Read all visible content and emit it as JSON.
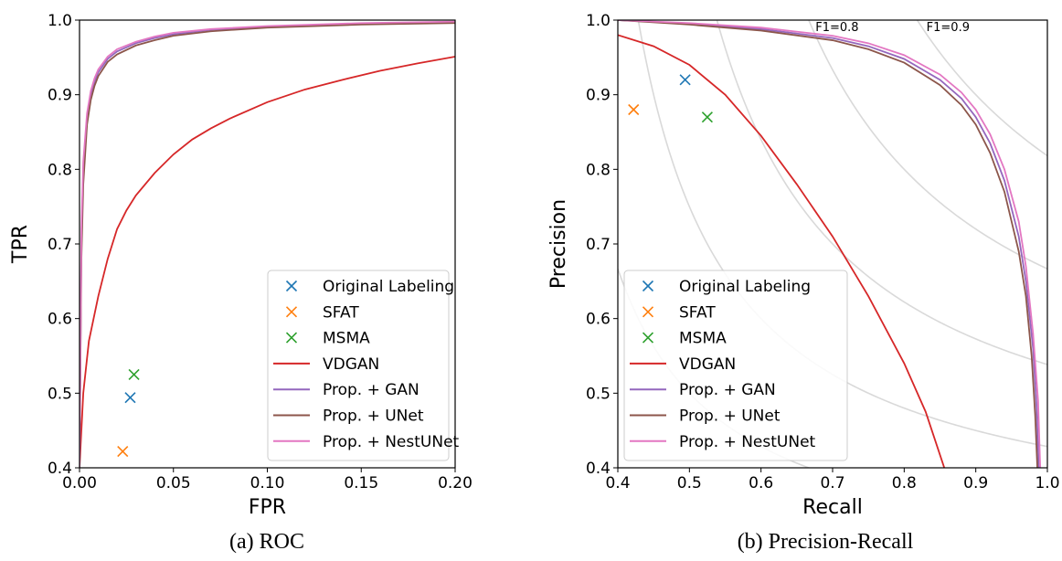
{
  "colors": {
    "blue": "#1f77b4",
    "orange": "#ff7f0e",
    "green": "#2ca02c",
    "red": "#d62728",
    "purple": "#9467bd",
    "brown": "#8c564b",
    "pink": "#e377c2",
    "iso": "#d9d9d9"
  },
  "chart_data": [
    {
      "type": "line",
      "caption": "(a) ROC",
      "title": "",
      "xlabel": "FPR",
      "ylabel": "TPR",
      "xlim": [
        0.0,
        0.2
      ],
      "ylim": [
        0.4,
        1.0
      ],
      "xticks": [
        "0.00",
        "0.05",
        "0.10",
        "0.15",
        "0.20"
      ],
      "yticks": [
        "0.4",
        "0.5",
        "0.6",
        "0.7",
        "0.8",
        "0.9",
        "1.0"
      ],
      "grid": false,
      "legend_position": "lower-right",
      "markers": [
        {
          "name": "Original Labeling",
          "x": 0.027,
          "y": 0.494,
          "color": "#1f77b4"
        },
        {
          "name": "SFAT",
          "x": 0.023,
          "y": 0.422,
          "color": "#ff7f0e"
        },
        {
          "name": "MSMA",
          "x": 0.029,
          "y": 0.525,
          "color": "#2ca02c"
        }
      ],
      "series": [
        {
          "name": "VDGAN",
          "color": "#d62728",
          "x": [
            0.0,
            0.002,
            0.005,
            0.01,
            0.015,
            0.02,
            0.025,
            0.03,
            0.04,
            0.05,
            0.06,
            0.07,
            0.08,
            0.1,
            0.12,
            0.14,
            0.16,
            0.18,
            0.2
          ],
          "y": [
            0.4,
            0.5,
            0.57,
            0.63,
            0.68,
            0.72,
            0.745,
            0.765,
            0.795,
            0.82,
            0.84,
            0.855,
            0.868,
            0.89,
            0.907,
            0.92,
            0.932,
            0.942,
            0.951
          ]
        },
        {
          "name": "Prop. + GAN",
          "color": "#9467bd",
          "x": [
            0.0,
            0.001,
            0.002,
            0.004,
            0.006,
            0.008,
            0.01,
            0.015,
            0.02,
            0.03,
            0.04,
            0.05,
            0.07,
            0.1,
            0.15,
            0.2
          ],
          "y": [
            0.4,
            0.7,
            0.8,
            0.87,
            0.9,
            0.918,
            0.93,
            0.948,
            0.958,
            0.969,
            0.976,
            0.981,
            0.987,
            0.991,
            0.995,
            0.997
          ]
        },
        {
          "name": "Prop. + UNet",
          "color": "#8c564b",
          "x": [
            0.0,
            0.001,
            0.002,
            0.004,
            0.006,
            0.008,
            0.01,
            0.015,
            0.02,
            0.03,
            0.04,
            0.05,
            0.07,
            0.1,
            0.15,
            0.2
          ],
          "y": [
            0.4,
            0.68,
            0.78,
            0.86,
            0.893,
            0.912,
            0.925,
            0.944,
            0.954,
            0.966,
            0.973,
            0.979,
            0.985,
            0.99,
            0.994,
            0.996
          ]
        },
        {
          "name": "Prop. + NestUNet",
          "color": "#e377c2",
          "x": [
            0.0,
            0.001,
            0.002,
            0.004,
            0.006,
            0.008,
            0.01,
            0.015,
            0.02,
            0.03,
            0.04,
            0.05,
            0.07,
            0.1,
            0.15,
            0.2
          ],
          "y": [
            0.4,
            0.72,
            0.81,
            0.875,
            0.905,
            0.922,
            0.934,
            0.951,
            0.961,
            0.971,
            0.978,
            0.983,
            0.988,
            0.992,
            0.996,
            0.998
          ]
        }
      ]
    },
    {
      "type": "line",
      "caption": "(b) Precision-Recall",
      "title": "",
      "xlabel": "Recall",
      "ylabel": "Precision",
      "xlim": [
        0.4,
        1.0
      ],
      "ylim": [
        0.4,
        1.0
      ],
      "xticks": [
        "0.4",
        "0.5",
        "0.6",
        "0.7",
        "0.8",
        "0.9",
        "1.0"
      ],
      "yticks": [
        "0.4",
        "0.5",
        "0.6",
        "0.7",
        "0.8",
        "0.9",
        "1.0"
      ],
      "grid": false,
      "legend_position": "lower-left",
      "iso_f1": [
        {
          "f1": 0.5
        },
        {
          "f1": 0.6
        },
        {
          "f1": 0.7
        },
        {
          "f1": 0.8,
          "label": "F1=0.8"
        },
        {
          "f1": 0.9,
          "label": "F1=0.9"
        }
      ],
      "markers": [
        {
          "name": "Original Labeling",
          "x": 0.494,
          "y": 0.92,
          "color": "#1f77b4"
        },
        {
          "name": "SFAT",
          "x": 0.422,
          "y": 0.88,
          "color": "#ff7f0e"
        },
        {
          "name": "MSMA",
          "x": 0.525,
          "y": 0.87,
          "color": "#2ca02c"
        }
      ],
      "series": [
        {
          "name": "VDGAN",
          "color": "#d62728",
          "x": [
            0.4,
            0.45,
            0.5,
            0.55,
            0.6,
            0.65,
            0.7,
            0.75,
            0.8,
            0.83,
            0.856
          ],
          "y": [
            0.98,
            0.965,
            0.94,
            0.9,
            0.845,
            0.78,
            0.71,
            0.63,
            0.54,
            0.475,
            0.4
          ]
        },
        {
          "name": "Prop. + GAN",
          "color": "#9467bd",
          "x": [
            0.4,
            0.5,
            0.6,
            0.7,
            0.75,
            0.8,
            0.85,
            0.88,
            0.9,
            0.92,
            0.94,
            0.96,
            0.97,
            0.98,
            0.985,
            0.988
          ],
          "y": [
            1.0,
            0.995,
            0.988,
            0.976,
            0.965,
            0.948,
            0.92,
            0.895,
            0.87,
            0.835,
            0.785,
            0.71,
            0.65,
            0.56,
            0.48,
            0.4
          ]
        },
        {
          "name": "Prop. + UNet",
          "color": "#8c564b",
          "x": [
            0.4,
            0.5,
            0.6,
            0.7,
            0.75,
            0.8,
            0.85,
            0.88,
            0.9,
            0.92,
            0.94,
            0.96,
            0.97,
            0.978,
            0.983,
            0.986
          ],
          "y": [
            1.0,
            0.994,
            0.986,
            0.973,
            0.961,
            0.943,
            0.913,
            0.886,
            0.86,
            0.822,
            0.77,
            0.69,
            0.63,
            0.55,
            0.47,
            0.4
          ]
        },
        {
          "name": "Prop. + NestUNet",
          "color": "#e377c2",
          "x": [
            0.4,
            0.5,
            0.6,
            0.7,
            0.75,
            0.8,
            0.85,
            0.88,
            0.9,
            0.92,
            0.94,
            0.96,
            0.97,
            0.98,
            0.987,
            0.99
          ],
          "y": [
            1.0,
            0.996,
            0.99,
            0.979,
            0.969,
            0.953,
            0.927,
            0.903,
            0.88,
            0.847,
            0.8,
            0.73,
            0.67,
            0.58,
            0.49,
            0.4
          ]
        }
      ]
    }
  ]
}
